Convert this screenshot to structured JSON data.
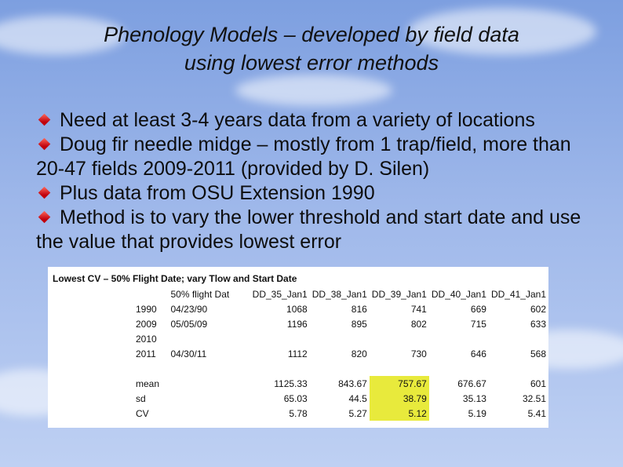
{
  "title": {
    "line1": "Phenology Models – developed by field data",
    "line2": "using lowest error methods"
  },
  "bullets": [
    "Need at least 3-4 years data from a variety of locations",
    "Doug fir needle midge – mostly from 1 trap/field, more than 20-47 fields 2009-2011 (provided by D. Silen)",
    "Plus data from OSU Extension 1990",
    "Method is to vary the lower threshold and start date and use the value that provides lowest error"
  ],
  "table": {
    "title": "Lowest CV – 50% Flight Date; vary Tlow and Start Date",
    "headers": [
      "",
      "50% flight Dat",
      "DD_35_Jan1",
      "DD_38_Jan1",
      "DD_39_Jan1",
      "DD_40_Jan1",
      "DD_41_Jan1"
    ],
    "rows": [
      [
        "1990",
        "04/23/90",
        "1068",
        "816",
        "741",
        "669",
        "602"
      ],
      [
        "2009",
        "05/05/09",
        "1196",
        "895",
        "802",
        "715",
        "633"
      ],
      [
        "2010",
        "",
        "",
        "",
        "",
        "",
        ""
      ],
      [
        "2011",
        "04/30/11",
        "1112",
        "820",
        "730",
        "646",
        "568"
      ],
      [
        "",
        "",
        "",
        "",
        "",
        "",
        ""
      ],
      [
        "mean",
        "",
        "1125.33",
        "843.67",
        "757.67",
        "676.67",
        "601"
      ],
      [
        "sd",
        "",
        "65.03",
        "44.5",
        "38.79",
        "35.13",
        "32.51"
      ],
      [
        "CV",
        "",
        "5.78",
        "5.27",
        "5.12",
        "5.19",
        "5.41"
      ]
    ]
  },
  "colors": {
    "highlight": "#e8ea3c",
    "bullet": "#c0000d"
  }
}
